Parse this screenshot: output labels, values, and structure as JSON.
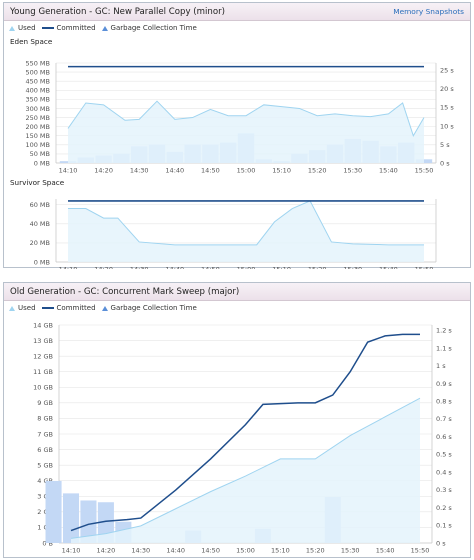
{
  "young": {
    "title": "Young Generation - GC: New Parallel Copy (minor)",
    "link": "Memory Snapshots",
    "legend": {
      "used": "Used",
      "committed": "Committed",
      "gc": "Garbage Collection Time"
    },
    "eden_title": "Eden Space",
    "survivor_title": "Survivor Space"
  },
  "old": {
    "title": "Old Generation - GC: Concurrent Mark Sweep (major)",
    "legend": {
      "used": "Used",
      "committed": "Committed",
      "gc": "Garbage Collection Time"
    }
  },
  "colors": {
    "used_fill": "#e4f3fc",
    "used_line": "#9fd4f0",
    "committed": "#1f4e8c",
    "gc_bar": "#c3d8f5",
    "grid": "#e6e6e6",
    "axis": "#c9c9c9"
  },
  "chart_data": [
    {
      "id": "eden",
      "type": "area",
      "title": "Eden Space",
      "xlabels": [
        "14:10",
        "14:20",
        "14:30",
        "14:40",
        "14:50",
        "15:00",
        "15:10",
        "15:20",
        "15:30",
        "15:40",
        "15:50"
      ],
      "y_left": {
        "ticks": [
          "0 MB",
          "50 MB",
          "100 MB",
          "150 MB",
          "200 MB",
          "250 MB",
          "300 MB",
          "350 MB",
          "400 MB",
          "450 MB",
          "500 MB",
          "550 MB"
        ],
        "max": 550
      },
      "y_right": {
        "ticks": [
          "0 s",
          "5 s",
          "10 s",
          "15 s",
          "20 s",
          "25 s"
        ],
        "max": 27
      },
      "committed": 530,
      "used": {
        "x": [
          0,
          0.5,
          1,
          1.6,
          2,
          2.5,
          3,
          3.5,
          4,
          4.5,
          5,
          5.5,
          6,
          6.5,
          7,
          7.5,
          8,
          8.5,
          9,
          9.4,
          9.7,
          10
        ],
        "y": [
          190,
          330,
          320,
          235,
          240,
          340,
          240,
          250,
          295,
          260,
          260,
          320,
          310,
          300,
          260,
          270,
          260,
          255,
          270,
          330,
          150,
          250
        ]
      },
      "gc": {
        "x": [
          0,
          0.5,
          1,
          1.5,
          2,
          2.5,
          3,
          3.5,
          4,
          4.5,
          5,
          5.5,
          6,
          6.5,
          7,
          7.5,
          8,
          8.5,
          9,
          9.5,
          10
        ],
        "y": [
          0.5,
          1.5,
          2,
          2.5,
          4.5,
          5,
          3,
          5,
          5,
          5.5,
          8,
          1,
          0.5,
          2.5,
          3.5,
          5,
          6.5,
          6,
          4.5,
          5.5,
          1
        ]
      }
    },
    {
      "id": "survivor",
      "type": "area",
      "title": "Survivor Space",
      "xlabels": [
        "14:10",
        "14:20",
        "14:30",
        "14:40",
        "14:50",
        "15:00",
        "15:10",
        "15:20",
        "15:30",
        "15:40",
        "15:50"
      ],
      "y_left": {
        "ticks": [
          "0 MB",
          "20 MB",
          "40 MB",
          "60 MB"
        ],
        "max": 66
      },
      "committed": 64,
      "used": {
        "x": [
          0,
          0.5,
          1,
          1.4,
          2,
          3,
          4,
          5,
          5.3,
          5.8,
          6.3,
          6.8,
          7.4,
          8,
          9,
          10
        ],
        "y": [
          56,
          56,
          46,
          46,
          21,
          18,
          18,
          18,
          18,
          42,
          56,
          64,
          21,
          19,
          18,
          18
        ]
      }
    },
    {
      "id": "old",
      "type": "area",
      "title": "",
      "xlabels": [
        "14:10",
        "14:20",
        "14:30",
        "14:40",
        "14:50",
        "15:00",
        "15:10",
        "15:20",
        "15:30",
        "15:40",
        "15:50"
      ],
      "y_left": {
        "ticks": [
          "0 B",
          "1 GB",
          "2 GB",
          "3 GB",
          "4 GB",
          "5 GB",
          "6 GB",
          "7 GB",
          "8 GB",
          "9 GB",
          "10 GB",
          "11 GB",
          "12 GB",
          "13 GB",
          "14 GB"
        ],
        "max": 14
      },
      "y_right": {
        "ticks": [
          "0 s",
          "0.1 s",
          "0.2 s",
          "0.3 s",
          "0.4 s",
          "0.5 s",
          "0.6 s",
          "0.7 s",
          "0.8 s",
          "0.9 s",
          "1 s",
          "1.1 s",
          "1.2 s"
        ],
        "max": 1.23
      },
      "used": {
        "x": [
          0,
          1,
          2,
          3,
          4,
          5,
          6,
          7,
          8,
          9,
          10
        ],
        "y": [
          0.3,
          0.6,
          1.1,
          2.2,
          3.3,
          4.3,
          5.4,
          5.4,
          6.9,
          8.1,
          9.3
        ]
      },
      "committed": {
        "x": [
          0,
          0.5,
          1,
          1.6,
          2,
          2.5,
          3,
          4,
          5,
          5.5,
          6.5,
          7,
          7.5,
          8,
          8.5,
          9,
          9.5,
          10
        ],
        "y": [
          0.8,
          1.2,
          1.4,
          1.5,
          1.6,
          2.5,
          3.4,
          5.4,
          7.6,
          8.9,
          9.0,
          9.0,
          9.5,
          11,
          12.9,
          13.3,
          13.4,
          13.4
        ]
      },
      "gc": {
        "x": [
          -0.5,
          0.0,
          0.5,
          1.0,
          1.5,
          3.5,
          5.5,
          7.5
        ],
        "y": [
          0.35,
          0.28,
          0.24,
          0.23,
          0.12,
          0.07,
          0.08,
          0.26
        ]
      }
    }
  ]
}
